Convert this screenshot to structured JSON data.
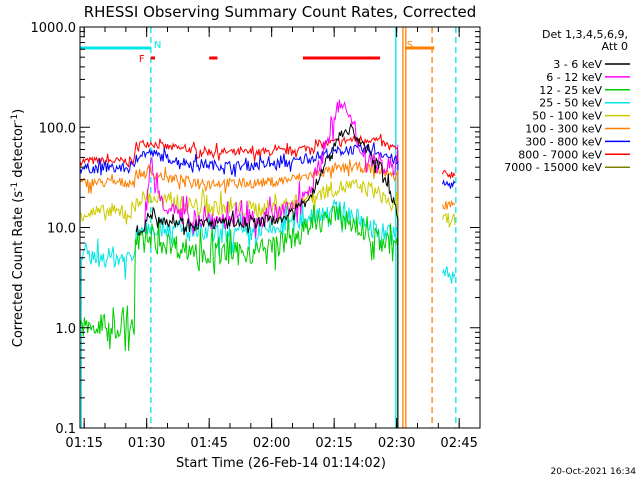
{
  "chart_data": {
    "type": "line",
    "title": "RHESSI Observing Summary Count Rates, Corrected",
    "xlabel": "Start Time (26-Feb-14 01:14:02)",
    "ylabel_parts": [
      "Corrected Count Rate (s",
      "-1",
      " detector",
      "-1",
      ")"
    ],
    "x_unit": "minutes after 01:14",
    "xlim": [
      0,
      96
    ],
    "ylim": [
      0.1,
      1000
    ],
    "y_scale": "log",
    "x_ticks": [
      {
        "t": 1,
        "label": "01:15"
      },
      {
        "t": 16,
        "label": "01:30"
      },
      {
        "t": 31,
        "label": "01:45"
      },
      {
        "t": 46,
        "label": "02:00"
      },
      {
        "t": 61,
        "label": "02:15"
      },
      {
        "t": 76,
        "label": "02:30"
      },
      {
        "t": 91,
        "label": "02:45"
      }
    ],
    "y_ticks": [
      {
        "v": 0.1,
        "label": "0.1"
      },
      {
        "v": 1,
        "label": "1.0"
      },
      {
        "v": 10,
        "label": "10.0"
      },
      {
        "v": 100,
        "label": "100.0"
      },
      {
        "v": 1000,
        "label": "1000.0"
      }
    ],
    "legend": {
      "placement": "right",
      "header": [
        "Det 1,3,4,5,6,9,",
        "Att 0"
      ],
      "entries": [
        {
          "label": "3 - 6 keV",
          "color": "#000000"
        },
        {
          "label": "6 - 12 keV",
          "color": "#ff00ff"
        },
        {
          "label": "12 - 25 keV",
          "color": "#00cc00"
        },
        {
          "label": "25 - 50 keV",
          "color": "#00e5e5"
        },
        {
          "label": "50 - 100 keV",
          "color": "#cccc00"
        },
        {
          "label": "100 - 300 keV",
          "color": "#ff7f00"
        },
        {
          "label": "300 - 800 keV",
          "color": "#0000ff"
        },
        {
          "label": "800 - 7000 keV",
          "color": "#ff0000"
        },
        {
          "label": "7000 - 15000 keV",
          "color": "#808000"
        }
      ]
    },
    "series": [
      {
        "color": "#ff0000",
        "segments": [
          [
            [
              0,
              46
            ],
            [
              13,
              46
            ],
            [
              13.5,
              68
            ],
            [
              17,
              70
            ],
            [
              20,
              64
            ],
            [
              26,
              60
            ],
            [
              32,
              57
            ],
            [
              38,
              56
            ],
            [
              44,
              56
            ],
            [
              50,
              58
            ],
            [
              55,
              63
            ],
            [
              60,
              70
            ],
            [
              65,
              75
            ],
            [
              70,
              76
            ],
            [
              73,
              68
            ],
            [
              75,
              62
            ],
            [
              76.3,
              60
            ],
            [
              76.3,
              0.1
            ]
          ],
          [
            [
              87,
              34
            ],
            [
              90,
              34
            ]
          ]
        ]
      },
      {
        "color": "#0000ff",
        "segments": [
          [
            [
              0,
              39
            ],
            [
              13,
              39
            ],
            [
              13.5,
              54
            ],
            [
              17,
              55
            ],
            [
              21,
              49
            ],
            [
              26,
              44
            ],
            [
              32,
              42
            ],
            [
              38,
              41
            ],
            [
              44,
              42
            ],
            [
              50,
              44
            ],
            [
              55,
              49
            ],
            [
              60,
              56
            ],
            [
              65,
              60
            ],
            [
              70,
              59
            ],
            [
              73,
              54
            ],
            [
              75,
              48
            ],
            [
              76.3,
              45
            ],
            [
              76.3,
              0.1
            ]
          ],
          [
            [
              87,
              27
            ],
            [
              90,
              27
            ]
          ]
        ]
      },
      {
        "color": "#ff7f00",
        "segments": [
          [
            [
              0,
              28
            ],
            [
              13,
              28
            ],
            [
              13.5,
              34
            ],
            [
              17,
              35
            ],
            [
              21,
              31
            ],
            [
              26,
              29
            ],
            [
              32,
              28
            ],
            [
              38,
              27.5
            ],
            [
              44,
              28
            ],
            [
              50,
              30
            ],
            [
              55,
              33
            ],
            [
              60,
              37
            ],
            [
              65,
              40
            ],
            [
              70,
              39
            ],
            [
              73,
              36
            ],
            [
              75,
              33
            ],
            [
              76.3,
              31
            ],
            [
              76.3,
              0.1
            ]
          ],
          [
            [
              87,
              17
            ],
            [
              90,
              17
            ]
          ]
        ]
      },
      {
        "color": "#cccc00",
        "segments": [
          [
            [
              0,
              14
            ],
            [
              13,
              14
            ],
            [
              13.5,
              19
            ],
            [
              17,
              20
            ],
            [
              21,
              18
            ],
            [
              26,
              17
            ],
            [
              32,
              16
            ],
            [
              38,
              15.5
            ],
            [
              44,
              15.5
            ],
            [
              50,
              17
            ],
            [
              55,
              20
            ],
            [
              60,
              24
            ],
            [
              65,
              26
            ],
            [
              70,
              24
            ],
            [
              73,
              20
            ],
            [
              75,
              16
            ],
            [
              76.3,
              15
            ],
            [
              76.3,
              0.1
            ]
          ],
          [
            [
              87,
              12
            ],
            [
              90,
              12
            ]
          ]
        ]
      },
      {
        "color": "#00e5e5",
        "segments": [
          [
            [
              0,
              0.1
            ],
            [
              0.3,
              0.1
            ],
            [
              0.3,
              5
            ],
            [
              13,
              5
            ],
            [
              13.5,
              10
            ],
            [
              17,
              10.5
            ],
            [
              21,
              10
            ],
            [
              26,
              9
            ],
            [
              32,
              8.5
            ],
            [
              38,
              8.5
            ],
            [
              44,
              9
            ],
            [
              50,
              10.5
            ],
            [
              55,
              13
            ],
            [
              58,
              14.5
            ],
            [
              61,
              15
            ],
            [
              64,
              14
            ],
            [
              67,
              12
            ],
            [
              70,
              10
            ],
            [
              73,
              9
            ],
            [
              76.3,
              8
            ],
            [
              76.3,
              0.1
            ]
          ],
          [
            [
              87,
              3.5
            ],
            [
              90,
              3.5
            ]
          ]
        ]
      },
      {
        "color": "#00cc00",
        "segments": [
          [
            [
              0,
              1
            ],
            [
              13,
              1
            ],
            [
              13.3,
              7
            ],
            [
              17,
              7.5
            ],
            [
              21,
              7
            ],
            [
              26,
              6
            ],
            [
              32,
              5.5
            ],
            [
              38,
              5.5
            ],
            [
              44,
              6
            ],
            [
              50,
              7.5
            ],
            [
              55,
              10
            ],
            [
              58,
              12
            ],
            [
              61,
              13
            ],
            [
              64,
              12
            ],
            [
              67,
              10
            ],
            [
              70,
              8
            ],
            [
              73,
              7
            ],
            [
              76.3,
              6.5
            ],
            [
              76.3,
              0.1
            ]
          ]
        ]
      },
      {
        "color": "#ff00ff",
        "segments": [
          [
            [
              15.5,
              9
            ],
            [
              17,
              50
            ],
            [
              18,
              28
            ],
            [
              20,
              18
            ],
            [
              24,
              13
            ],
            [
              28,
              12.5
            ],
            [
              32,
              12
            ],
            [
              38,
              12
            ],
            [
              44,
              12.5
            ],
            [
              50,
              15
            ],
            [
              54,
              22
            ],
            [
              57,
              35
            ],
            [
              59,
              70
            ],
            [
              60,
              100
            ],
            [
              62,
              150
            ],
            [
              63,
              180
            ],
            [
              65,
              110
            ],
            [
              67,
              65
            ],
            [
              70,
              45
            ],
            [
              73,
              40
            ],
            [
              75,
              42
            ],
            [
              76.3,
              42
            ]
          ]
        ]
      },
      {
        "color": "#000000",
        "segments": [
          [
            [
              13.5,
              9
            ],
            [
              15,
              10
            ],
            [
              17,
              14
            ],
            [
              20,
              12
            ],
            [
              26,
              11
            ],
            [
              32,
              11
            ],
            [
              38,
              11
            ],
            [
              44,
              11.5
            ],
            [
              50,
              13
            ],
            [
              54,
              18
            ],
            [
              57,
              28
            ],
            [
              59,
              45
            ],
            [
              61,
              65
            ],
            [
              63,
              90
            ],
            [
              65,
              95
            ],
            [
              67,
              75
            ],
            [
              70,
              50
            ],
            [
              73,
              35
            ],
            [
              75,
              20
            ],
            [
              76.3,
              12
            ],
            [
              76.3,
              0.1
            ]
          ]
        ]
      }
    ],
    "attenuator_markers": [
      {
        "label": "N",
        "t": 17,
        "color": "#00e5e5",
        "bar": [
          0,
          17
        ]
      },
      {
        "label": "S",
        "t": 77.7,
        "color": "#ff7f00",
        "bar": [
          78,
          85
        ]
      }
    ],
    "flare_flag": {
      "label": "F",
      "color": "#ff0000",
      "segments": [
        [
          17,
          18
        ],
        [
          31,
          33
        ],
        [
          53.5,
          72
        ]
      ]
    },
    "vertical_lines": [
      {
        "t": 17,
        "color": "#00e5e5",
        "dashed": true
      },
      {
        "t": 75.8,
        "color": "#00e5e5",
        "dashed": false
      },
      {
        "t": 77.5,
        "color": "#ff7f00",
        "dashed": false
      },
      {
        "t": 78.2,
        "color": "#ff7f00",
        "dashed": false
      },
      {
        "t": 84.5,
        "color": "#ff7f00",
        "dashed": true
      },
      {
        "t": 90.2,
        "color": "#00e5e5",
        "dashed": true
      }
    ],
    "timestamp": "20-Oct-2021 16:34"
  }
}
